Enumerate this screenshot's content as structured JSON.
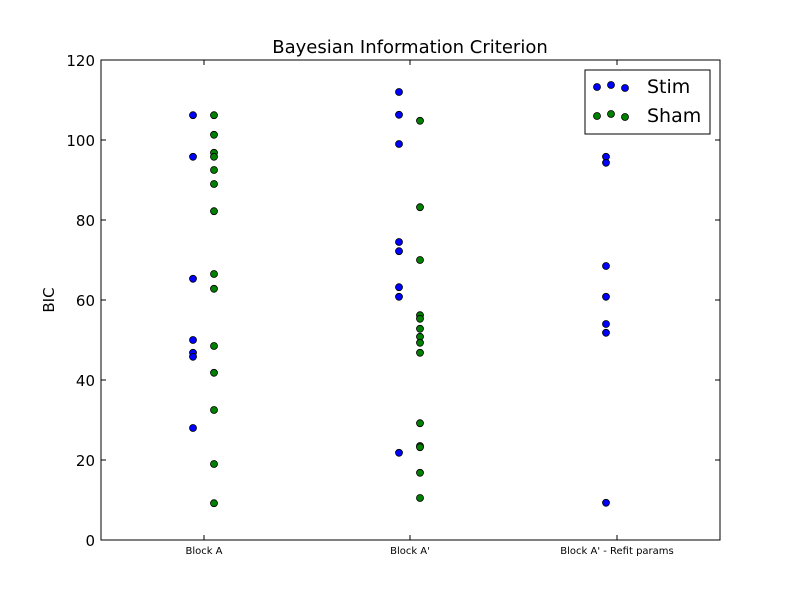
{
  "chart_data": {
    "type": "scatter",
    "title": "Bayesian Information Criterion",
    "xlabel": "",
    "ylabel": "BIC",
    "ylim": [
      0,
      120
    ],
    "yticks": [
      0,
      20,
      40,
      60,
      80,
      100,
      120
    ],
    "grid": false,
    "legend_position": "top-right",
    "categories": [
      "Block A",
      "Block A'",
      "Block A' - Refit params"
    ],
    "series": [
      {
        "name": "Stim",
        "color": "#0000ff",
        "points": [
          {
            "x": "Block A",
            "y": 106.2
          },
          {
            "x": "Block A",
            "y": 95.8
          },
          {
            "x": "Block A",
            "y": 65.3
          },
          {
            "x": "Block A",
            "y": 50.0
          },
          {
            "x": "Block A",
            "y": 46.8
          },
          {
            "x": "Block A",
            "y": 45.8
          },
          {
            "x": "Block A",
            "y": 28.0
          },
          {
            "x": "Block A'",
            "y": 112.0
          },
          {
            "x": "Block A'",
            "y": 106.3
          },
          {
            "x": "Block A'",
            "y": 99.0
          },
          {
            "x": "Block A'",
            "y": 74.5
          },
          {
            "x": "Block A'",
            "y": 72.2
          },
          {
            "x": "Block A'",
            "y": 63.2
          },
          {
            "x": "Block A'",
            "y": 60.8
          },
          {
            "x": "Block A'",
            "y": 21.8
          },
          {
            "x": "Block A' - Refit params",
            "y": 95.8
          },
          {
            "x": "Block A' - Refit params",
            "y": 94.3
          },
          {
            "x": "Block A' - Refit params",
            "y": 68.5
          },
          {
            "x": "Block A' - Refit params",
            "y": 60.8
          },
          {
            "x": "Block A' - Refit params",
            "y": 54.0
          },
          {
            "x": "Block A' - Refit params",
            "y": 51.8
          },
          {
            "x": "Block A' - Refit params",
            "y": 9.3
          }
        ]
      },
      {
        "name": "Sham",
        "color": "#008000",
        "points": [
          {
            "x": "Block A",
            "y": 106.2
          },
          {
            "x": "Block A",
            "y": 101.3
          },
          {
            "x": "Block A",
            "y": 96.8
          },
          {
            "x": "Block A",
            "y": 95.8
          },
          {
            "x": "Block A",
            "y": 92.5
          },
          {
            "x": "Block A",
            "y": 89.0
          },
          {
            "x": "Block A",
            "y": 82.2
          },
          {
            "x": "Block A",
            "y": 66.5
          },
          {
            "x": "Block A",
            "y": 62.8
          },
          {
            "x": "Block A",
            "y": 48.5
          },
          {
            "x": "Block A",
            "y": 41.8
          },
          {
            "x": "Block A",
            "y": 32.5
          },
          {
            "x": "Block A",
            "y": 19.0
          },
          {
            "x": "Block A",
            "y": 9.2
          },
          {
            "x": "Block A'",
            "y": 104.8
          },
          {
            "x": "Block A'",
            "y": 83.2
          },
          {
            "x": "Block A'",
            "y": 70.0
          },
          {
            "x": "Block A'",
            "y": 56.2
          },
          {
            "x": "Block A'",
            "y": 55.3
          },
          {
            "x": "Block A'",
            "y": 52.8
          },
          {
            "x": "Block A'",
            "y": 50.8
          },
          {
            "x": "Block A'",
            "y": 49.3
          },
          {
            "x": "Block A'",
            "y": 46.8
          },
          {
            "x": "Block A'",
            "y": 29.2
          },
          {
            "x": "Block A'",
            "y": 23.5
          },
          {
            "x": "Block A'",
            "y": 23.2
          },
          {
            "x": "Block A'",
            "y": 16.8
          },
          {
            "x": "Block A'",
            "y": 10.5
          }
        ]
      }
    ]
  }
}
